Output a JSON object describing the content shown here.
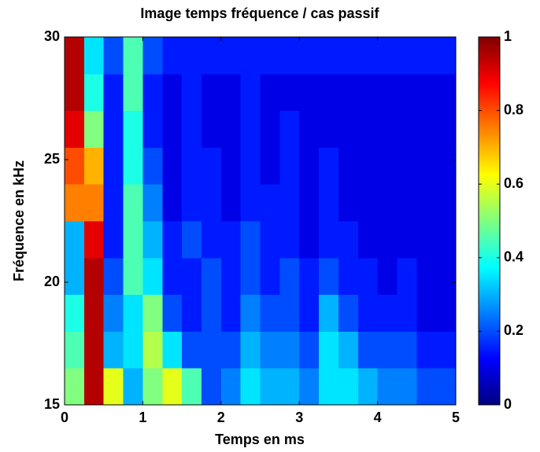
{
  "chart_data": {
    "type": "heatmap",
    "title": "Image temps fréquence / cas passif",
    "x_label": "Temps en ms",
    "y_label": "Fréquence en kHz",
    "colormap": "jet",
    "x": [
      0.125,
      0.375,
      0.625,
      0.875,
      1.125,
      1.375,
      1.625,
      1.875,
      2.125,
      2.375,
      2.625,
      2.875,
      3.125,
      3.375,
      3.625,
      3.875,
      4.125,
      4.375,
      4.625,
      4.875
    ],
    "y": [
      15.75,
      17.25,
      18.75,
      20.25,
      21.75,
      23.25,
      24.75,
      26.25,
      27.75,
      29.25
    ],
    "values": [
      [
        0.5,
        0.95,
        0.6,
        0.3,
        0.5,
        0.6,
        0.45,
        0.2,
        0.25,
        0.35,
        0.3,
        0.3,
        0.25,
        0.35,
        0.35,
        0.3,
        0.25,
        0.25,
        0.2,
        0.2
      ],
      [
        0.45,
        0.95,
        0.3,
        0.35,
        0.55,
        0.35,
        0.2,
        0.2,
        0.2,
        0.3,
        0.25,
        0.25,
        0.2,
        0.35,
        0.3,
        0.2,
        0.2,
        0.2,
        0.15,
        0.15
      ],
      [
        0.4,
        0.95,
        0.25,
        0.35,
        0.5,
        0.2,
        0.15,
        0.2,
        0.15,
        0.25,
        0.2,
        0.2,
        0.15,
        0.3,
        0.2,
        0.15,
        0.15,
        0.15,
        0.1,
        0.1
      ],
      [
        0.3,
        0.95,
        0.2,
        0.45,
        0.35,
        0.15,
        0.15,
        0.2,
        0.15,
        0.2,
        0.15,
        0.2,
        0.15,
        0.2,
        0.15,
        0.15,
        0.1,
        0.15,
        0.1,
        0.1
      ],
      [
        0.3,
        0.9,
        0.15,
        0.45,
        0.3,
        0.15,
        0.2,
        0.15,
        0.15,
        0.2,
        0.15,
        0.15,
        0.1,
        0.15,
        0.15,
        0.1,
        0.1,
        0.1,
        0.1,
        0.1
      ],
      [
        0.75,
        0.75,
        0.15,
        0.45,
        0.25,
        0.1,
        0.15,
        0.15,
        0.1,
        0.15,
        0.15,
        0.15,
        0.1,
        0.15,
        0.1,
        0.1,
        0.1,
        0.1,
        0.1,
        0.1
      ],
      [
        0.8,
        0.7,
        0.15,
        0.4,
        0.2,
        0.1,
        0.15,
        0.15,
        0.1,
        0.15,
        0.1,
        0.15,
        0.1,
        0.15,
        0.1,
        0.1,
        0.1,
        0.1,
        0.1,
        0.1
      ],
      [
        0.9,
        0.5,
        0.15,
        0.4,
        0.15,
        0.1,
        0.15,
        0.1,
        0.1,
        0.15,
        0.1,
        0.15,
        0.1,
        0.1,
        0.1,
        0.1,
        0.1,
        0.1,
        0.1,
        0.1
      ],
      [
        0.95,
        0.4,
        0.15,
        0.45,
        0.15,
        0.1,
        0.15,
        0.1,
        0.1,
        0.15,
        0.1,
        0.1,
        0.1,
        0.1,
        0.1,
        0.1,
        0.1,
        0.1,
        0.1,
        0.1
      ],
      [
        0.95,
        0.35,
        0.2,
        0.45,
        0.2,
        0.15,
        0.15,
        0.15,
        0.15,
        0.15,
        0.15,
        0.15,
        0.15,
        0.15,
        0.15,
        0.15,
        0.15,
        0.15,
        0.15,
        0.15
      ]
    ],
    "xlim": [
      0,
      5
    ],
    "xticks": [
      0,
      1,
      2,
      3,
      4,
      5
    ],
    "ylim": [
      15,
      30
    ],
    "yticks": [
      15,
      20,
      25,
      30
    ],
    "clim": [
      0,
      1
    ],
    "cticks": [
      0,
      0.2,
      0.4,
      0.6,
      0.8,
      1
    ]
  }
}
